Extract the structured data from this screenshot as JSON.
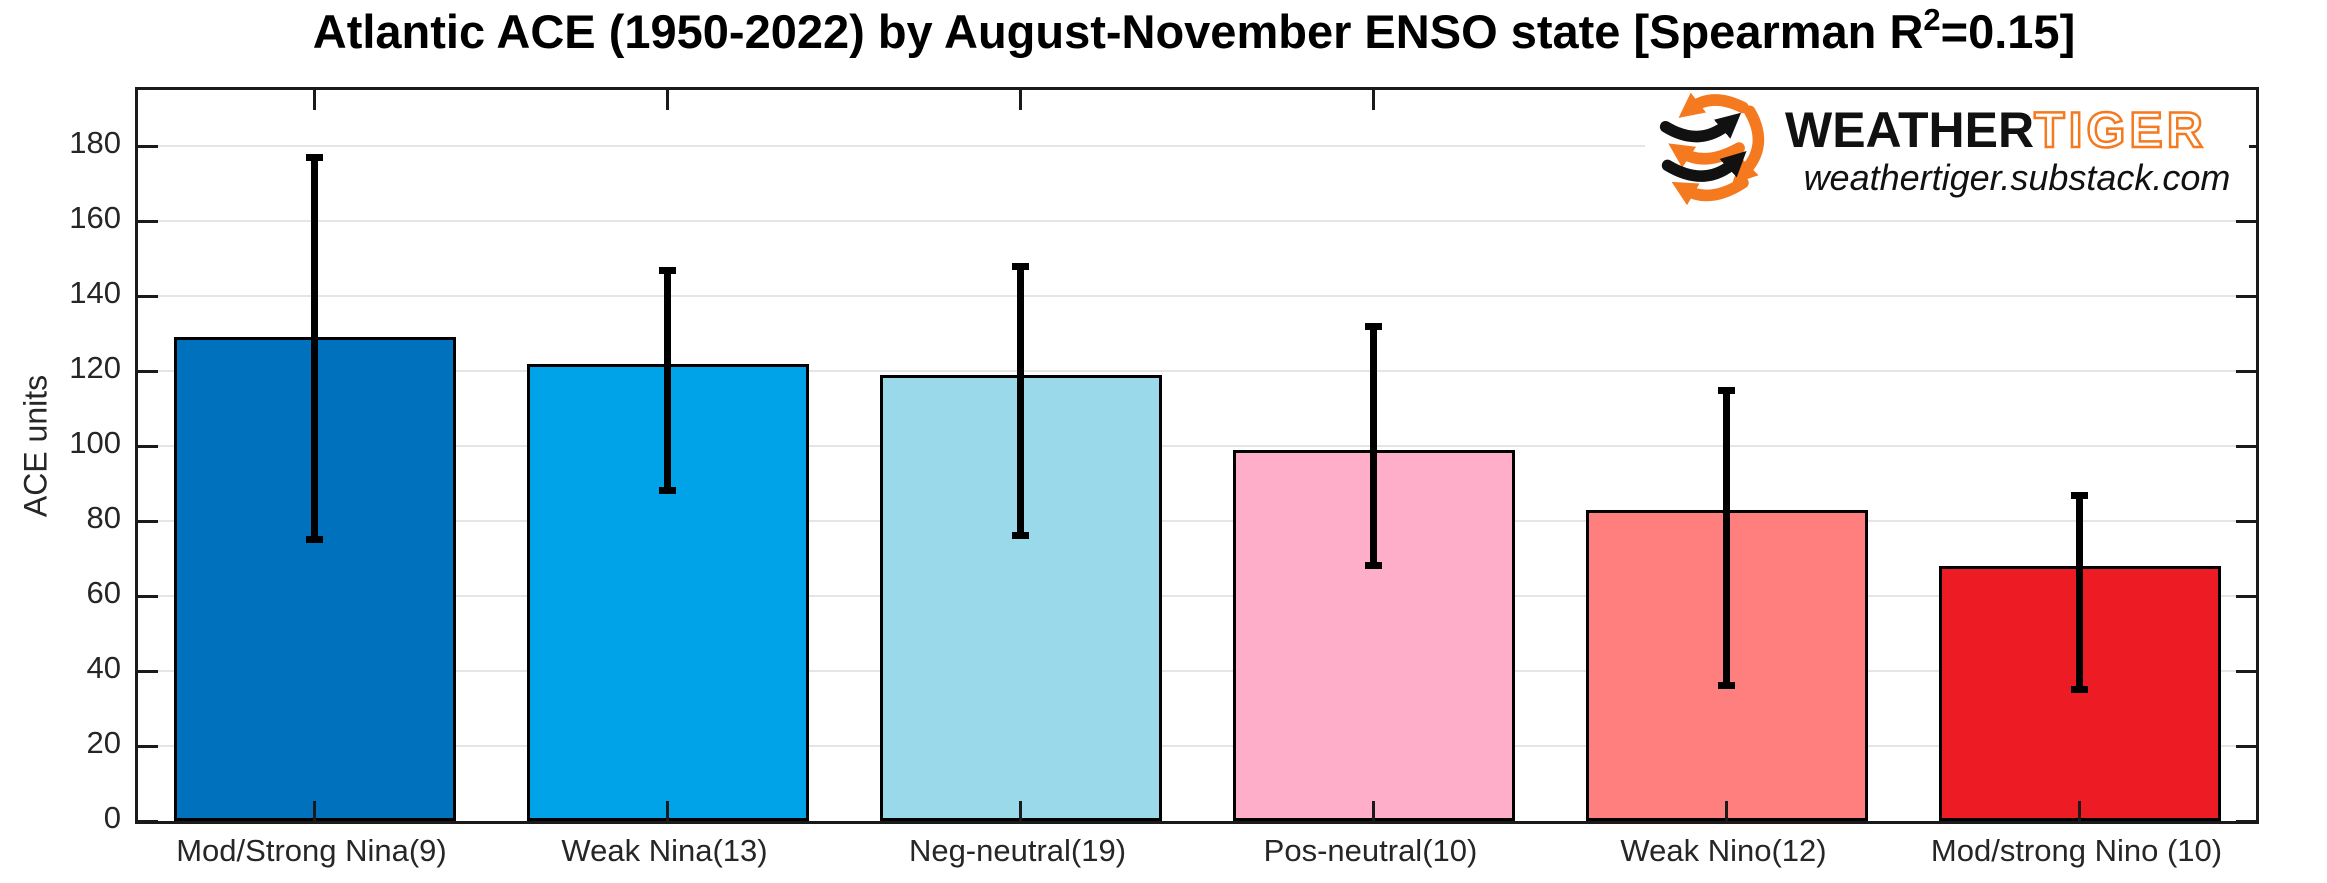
{
  "title": {
    "prefix": "Atlantic ACE (1950-2022) by August-November ENSO state [Spearman R",
    "sup": "2",
    "suffix": "=0.15]"
  },
  "logo": {
    "brand_black": "WEATHER",
    "brand_orange": "TIGER",
    "url": "weathertiger.substack.com",
    "orange": "#F4791F",
    "black": "#111111"
  },
  "chart_data": {
    "type": "bar",
    "title": "Atlantic ACE (1950-2022) by August-November ENSO state [Spearman R^2=0.15]",
    "xlabel": "",
    "ylabel": "ACE units",
    "categories": [
      "Mod/Strong Nina(9)",
      "Weak Nina(13)",
      "Neg-neutral(19)",
      "Pos-neutral(10)",
      "Weak Nino(12)",
      "Mod/strong Nino (10)"
    ],
    "values": [
      129,
      122,
      119,
      99,
      83,
      68
    ],
    "error_low": [
      75,
      88,
      76,
      68,
      36,
      35
    ],
    "error_high": [
      177,
      147,
      148,
      132,
      115,
      87
    ],
    "bar_colors": [
      "#0072BD",
      "#00A2E8",
      "#99D9EA",
      "#FFAEC9",
      "#FF7F7F",
      "#ED1C24"
    ],
    "bar_edge_color": "#000000",
    "error_color": "#000000",
    "yticks": [
      0,
      20,
      40,
      60,
      80,
      100,
      120,
      140,
      160,
      180
    ],
    "ylim": [
      0,
      195
    ],
    "grid": "horizontal",
    "grid_color": "#E5E5E5",
    "axis_color": "#1A1A1A",
    "legend": "none"
  }
}
